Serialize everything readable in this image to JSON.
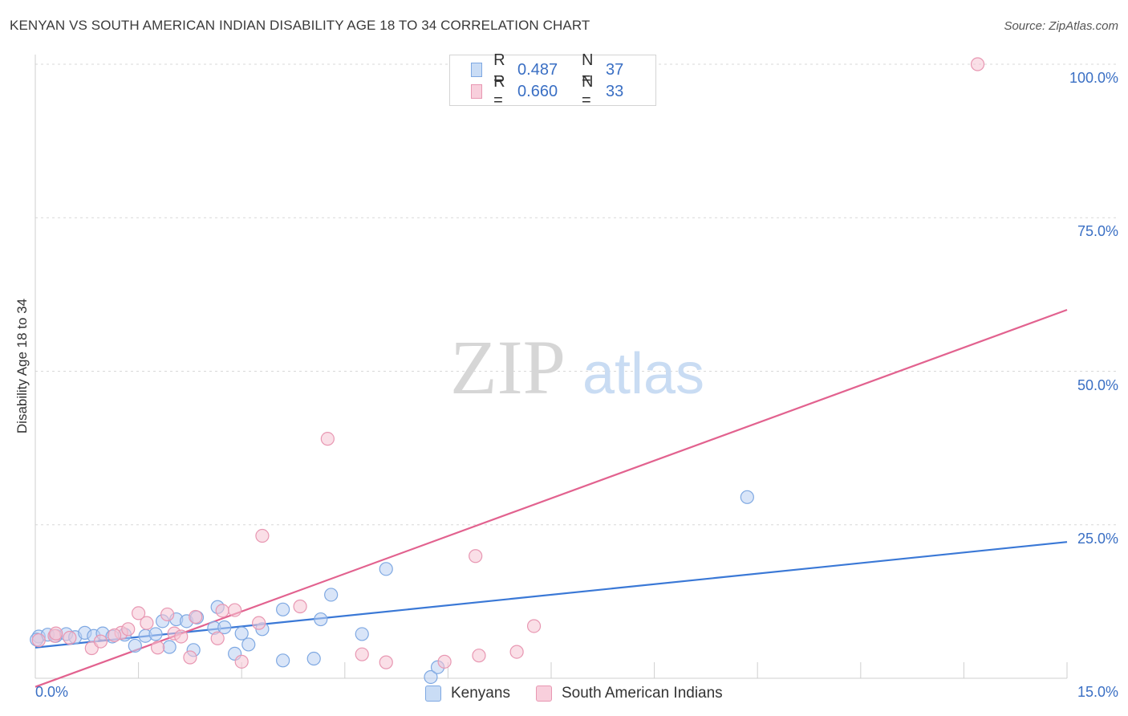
{
  "title": "KENYAN VS SOUTH AMERICAN INDIAN DISABILITY AGE 18 TO 34 CORRELATION CHART",
  "source": "Source: ZipAtlas.com",
  "watermark": {
    "zip": "ZIP",
    "atlas": "atlas"
  },
  "legend": {
    "r_label": "R =",
    "n_label": "N =",
    "rows": [
      {
        "name": "Kenyans",
        "r": "0.487",
        "n": "37",
        "color": "#6f9fe0",
        "fill": "#b9d0f2"
      },
      {
        "name": "South American Indians",
        "r": "0.660",
        "n": "33",
        "color": "#e48aa8",
        "fill": "#f6c4d4"
      }
    ]
  },
  "chart_data": {
    "type": "scatter",
    "title": "KENYAN VS SOUTH AMERICAN INDIAN DISABILITY AGE 18 TO 34 CORRELATION CHART",
    "xlabel": "",
    "ylabel": "Disability Age 18 to 34",
    "xlim": [
      0,
      15
    ],
    "ylim": [
      0,
      100
    ],
    "x_tick_labels": [
      "0.0%",
      "15.0%"
    ],
    "y_ticks": [
      25,
      50,
      75,
      100
    ],
    "y_tick_labels": [
      "25.0%",
      "50.0%",
      "75.0%",
      "100.0%"
    ],
    "grid": true,
    "series": [
      {
        "name": "Kenyans",
        "color": "#3a78d6",
        "marker_fill": "#b9d0f2",
        "points": [
          [
            0.05,
            6.8
          ],
          [
            0.18,
            7.1
          ],
          [
            0.3,
            6.9
          ],
          [
            0.45,
            7.2
          ],
          [
            0.58,
            6.7
          ],
          [
            0.72,
            7.4
          ],
          [
            0.85,
            6.9
          ],
          [
            0.98,
            7.3
          ],
          [
            1.12,
            6.8
          ],
          [
            1.3,
            7.1
          ],
          [
            1.45,
            5.3
          ],
          [
            1.6,
            6.9
          ],
          [
            1.75,
            7.2
          ],
          [
            1.85,
            9.3
          ],
          [
            1.95,
            5.1
          ],
          [
            2.05,
            9.6
          ],
          [
            2.2,
            9.3
          ],
          [
            2.3,
            4.6
          ],
          [
            2.35,
            9.9
          ],
          [
            2.6,
            8.2
          ],
          [
            2.65,
            11.6
          ],
          [
            2.75,
            8.3
          ],
          [
            2.9,
            4.0
          ],
          [
            3.0,
            7.3
          ],
          [
            3.1,
            5.5
          ],
          [
            3.3,
            8.0
          ],
          [
            3.6,
            2.9
          ],
          [
            3.6,
            11.2
          ],
          [
            4.05,
            3.2
          ],
          [
            4.15,
            9.6
          ],
          [
            4.3,
            13.6
          ],
          [
            4.75,
            7.2
          ],
          [
            5.1,
            17.8
          ],
          [
            5.75,
            0.2
          ],
          [
            5.85,
            1.8
          ],
          [
            10.35,
            29.5
          ],
          [
            0.02,
            6.3
          ]
        ],
        "trend": {
          "x": [
            0,
            15
          ],
          "y": [
            5.0,
            22.2
          ]
        }
      },
      {
        "name": "South American Indians",
        "color": "#e2628f",
        "marker_fill": "#f6c4d4",
        "points": [
          [
            0.05,
            6.2
          ],
          [
            0.28,
            6.9
          ],
          [
            0.5,
            6.6
          ],
          [
            0.82,
            4.9
          ],
          [
            0.95,
            6.0
          ],
          [
            1.25,
            7.4
          ],
          [
            1.35,
            8.0
          ],
          [
            1.5,
            10.6
          ],
          [
            1.62,
            9.0
          ],
          [
            1.78,
            5.0
          ],
          [
            1.92,
            10.4
          ],
          [
            2.02,
            7.3
          ],
          [
            2.25,
            3.4
          ],
          [
            2.33,
            10.0
          ],
          [
            2.65,
            6.5
          ],
          [
            2.72,
            11.0
          ],
          [
            2.9,
            11.1
          ],
          [
            3.0,
            2.7
          ],
          [
            3.25,
            9.0
          ],
          [
            3.3,
            23.2
          ],
          [
            3.85,
            11.7
          ],
          [
            4.25,
            39.0
          ],
          [
            4.75,
            3.9
          ],
          [
            5.1,
            2.6
          ],
          [
            5.95,
            2.7
          ],
          [
            6.4,
            19.9
          ],
          [
            6.45,
            3.7
          ],
          [
            7.0,
            4.3
          ],
          [
            7.25,
            8.5
          ],
          [
            13.7,
            100.0
          ],
          [
            0.3,
            7.3
          ],
          [
            1.15,
            7.0
          ],
          [
            2.12,
            6.8
          ]
        ],
        "trend": {
          "x": [
            0,
            15
          ],
          "y": [
            -1.4,
            60.0
          ]
        }
      }
    ]
  }
}
